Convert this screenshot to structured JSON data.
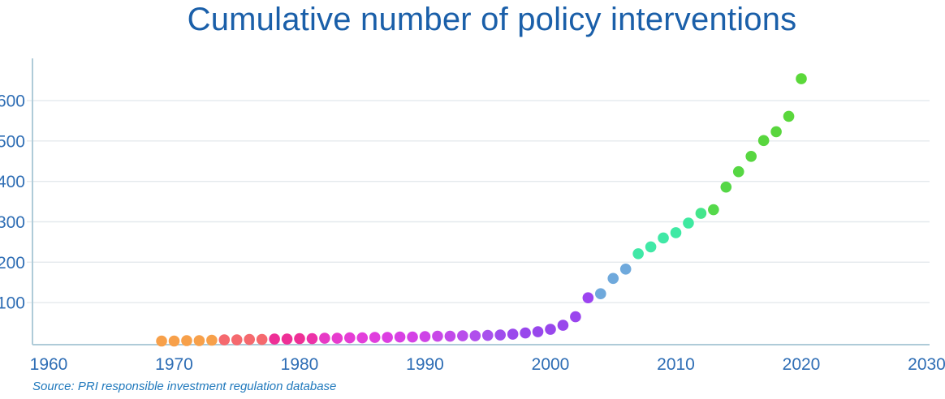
{
  "title": "Cumulative number of policy interventions",
  "source": "Source: PRI responsible investment regulation database",
  "colors": {
    "title_text": "#1A5FA9",
    "tick_label": "#2F6EB5",
    "source_text": "#1F78BC",
    "axis_line": "#AFCBD8",
    "gridline": "#E4E9ED",
    "background": "#FFFFFF"
  },
  "chart_data": {
    "type": "scatter",
    "title": "Cumulative number of policy interventions",
    "xlabel": "",
    "ylabel": "",
    "grid": "horizontal",
    "legend": "none",
    "marker": "circle",
    "xticks": [
      1960,
      1970,
      1980,
      1990,
      2000,
      2010,
      2020,
      2030
    ],
    "yticks": [
      100,
      200,
      300,
      400,
      500,
      600
    ],
    "xlim": [
      1958.5,
      2030.5
    ],
    "ylim": [
      0,
      705
    ],
    "x": [
      1969,
      1970,
      1971,
      1972,
      1973,
      1974,
      1975,
      1976,
      1977,
      1978,
      1979,
      1980,
      1981,
      1982,
      1983,
      1984,
      1985,
      1986,
      1987,
      1988,
      1989,
      1990,
      1991,
      1992,
      1993,
      1994,
      1995,
      1996,
      1997,
      1998,
      1999,
      2000,
      2001,
      2002,
      2003,
      2004,
      2005,
      2006,
      2007,
      2008,
      2009,
      2010,
      2011,
      2012,
      2013,
      2014,
      2015,
      2016,
      2017,
      2018,
      2019,
      2020
    ],
    "values": [
      5,
      5,
      6,
      6,
      7,
      8,
      8,
      9,
      9,
      10,
      10,
      11,
      11,
      12,
      12,
      13,
      13,
      14,
      14,
      15,
      15,
      16,
      17,
      17,
      18,
      18,
      19,
      20,
      22,
      25,
      28,
      34,
      44,
      65,
      112,
      122,
      160,
      183,
      221,
      238,
      260,
      273,
      297,
      321,
      330,
      386,
      424,
      462,
      501,
      523,
      561,
      654
    ],
    "point_colors": [
      "#F7A04A",
      "#F7A04A",
      "#F7A04A",
      "#F7A04A",
      "#F7A04A",
      "#F5696E",
      "#F5696E",
      "#F5696E",
      "#F5696E",
      "#EE2F96",
      "#EE2F96",
      "#EE2F96",
      "#EC32A8",
      "#E739C6",
      "#E73BCE",
      "#E53DD5",
      "#E33FDB",
      "#E03EDE",
      "#DC3EE2",
      "#D840E4",
      "#D442E6",
      "#CE44E7",
      "#C847E8",
      "#C14AEA",
      "#B94DEB",
      "#B04FEC",
      "#A851ED",
      "#9F4DED",
      "#9A49EC",
      "#9847EC",
      "#9847EC",
      "#9847EC",
      "#9847EC",
      "#9A45EE",
      "#9C44F0",
      "#6FA9DC",
      "#6FA9DC",
      "#6FA9DC",
      "#40E8A6",
      "#40E8A6",
      "#40E8A6",
      "#3FE9A4",
      "#3EE9A0",
      "#44E68C",
      "#55D94B",
      "#55D746",
      "#56D743",
      "#57D640",
      "#58D63E",
      "#59D63D",
      "#5AD73C",
      "#5BD83A"
    ]
  }
}
